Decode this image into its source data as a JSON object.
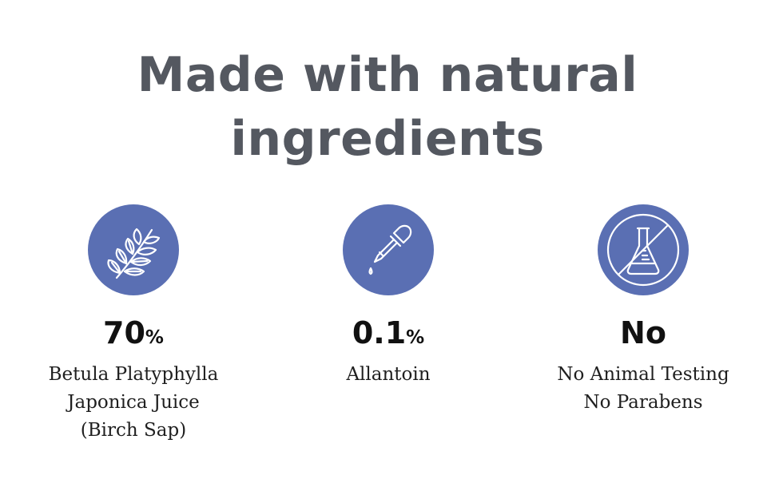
{
  "headline": {
    "line1": "Made with natural",
    "line2": "ingredients"
  },
  "colors": {
    "accent": "#5a6fb3",
    "headline": "#545860",
    "text": "#111111"
  },
  "features": [
    {
      "icon": "leaf-branch-icon",
      "value": "70",
      "unit": "%",
      "lines": [
        "Betula Platyphylla",
        "Japonica Juice",
        "(Birch Sap)"
      ]
    },
    {
      "icon": "dropper-icon",
      "value": "0.1",
      "unit": "%",
      "lines": [
        "Allantoin"
      ]
    },
    {
      "icon": "no-flask-icon",
      "value": "No",
      "unit": "",
      "lines": [
        "No Animal Testing",
        "No Parabens"
      ]
    }
  ]
}
